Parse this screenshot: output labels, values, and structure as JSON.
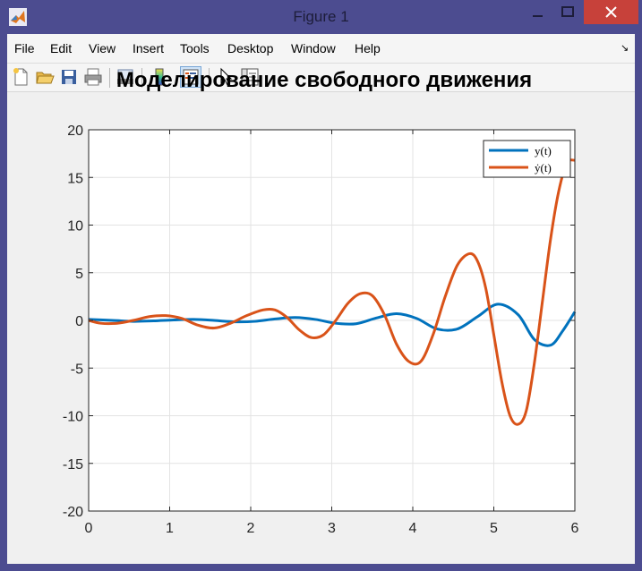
{
  "window": {
    "title": "Figure 1",
    "accent": "#4c4c90",
    "close_color": "#c7413a"
  },
  "menu": {
    "items": [
      "File",
      "Edit",
      "View",
      "Insert",
      "Tools",
      "Desktop",
      "Window",
      "Help"
    ]
  },
  "toolbar": {
    "icons": [
      "new-figure-icon",
      "open-file-icon",
      "save-icon",
      "print-icon",
      "print-preview-icon",
      "colorbar-icon",
      "legend-icon",
      "edit-plot-arrow-icon",
      "property-inspector-icon"
    ],
    "pressed": "legend-icon"
  },
  "chart_data": {
    "type": "line",
    "title": "Моделирование свободного движения",
    "xlim": [
      0,
      6
    ],
    "ylim": [
      -20,
      20
    ],
    "xticks": [
      0,
      1,
      2,
      3,
      4,
      5,
      6
    ],
    "yticks": [
      20,
      15,
      10,
      5,
      0,
      -5,
      -10,
      -15,
      -20
    ],
    "grid": true,
    "legend_position": "top-right",
    "series": [
      {
        "name": "y(t)",
        "color": "#0072bd",
        "x": [
          0,
          0.3,
          0.55,
          0.8,
          1.05,
          1.3,
          1.55,
          1.8,
          2.05,
          2.3,
          2.55,
          2.8,
          3.05,
          3.3,
          3.55,
          3.8,
          4.05,
          4.3,
          4.55,
          4.8,
          5.05,
          5.3,
          5.5,
          5.7,
          5.85,
          6.0
        ],
        "y": [
          0.1,
          0.0,
          -0.1,
          -0.05,
          0.05,
          0.1,
          0.0,
          -0.15,
          -0.1,
          0.15,
          0.3,
          0.1,
          -0.3,
          -0.35,
          0.25,
          0.7,
          0.2,
          -0.9,
          -0.9,
          0.4,
          1.7,
          0.6,
          -2.0,
          -2.6,
          -1.1,
          0.9
        ]
      },
      {
        "name": "ẏ(t)",
        "color": "#d95319",
        "x": [
          0,
          0.15,
          0.35,
          0.55,
          0.75,
          0.95,
          1.15,
          1.35,
          1.55,
          1.75,
          1.95,
          2.15,
          2.3,
          2.45,
          2.6,
          2.75,
          2.9,
          3.05,
          3.2,
          3.35,
          3.5,
          3.65,
          3.8,
          3.95,
          4.1,
          4.25,
          4.4,
          4.55,
          4.7,
          4.8,
          4.9,
          5.0,
          5.1,
          5.2,
          5.3,
          5.4,
          5.5,
          5.6,
          5.7,
          5.8,
          5.9,
          6.0
        ],
        "y": [
          0.0,
          -0.3,
          -0.3,
          0.0,
          0.4,
          0.5,
          0.2,
          -0.5,
          -0.8,
          -0.3,
          0.5,
          1.1,
          1.1,
          0.3,
          -1.0,
          -1.8,
          -1.5,
          0.0,
          1.8,
          2.8,
          2.6,
          0.6,
          -2.5,
          -4.3,
          -4.3,
          -1.5,
          2.5,
          5.8,
          7.0,
          6.2,
          3.4,
          -1.5,
          -6.5,
          -10.0,
          -10.9,
          -9.5,
          -4.5,
          2.0,
          8.5,
          13.5,
          16.5,
          16.8
        ]
      }
    ]
  }
}
